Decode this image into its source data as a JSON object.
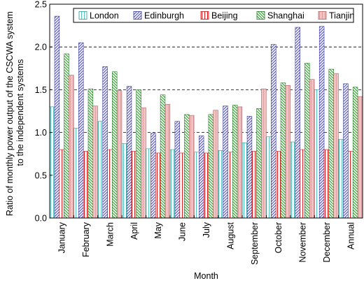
{
  "chart_data": {
    "type": "bar",
    "xlabel": "Month",
    "ylabel": "Ratio of monthly power output of the CSCWA system to the independent systems",
    "ylabel_lines": [
      "Ratio of monthly power output of the CSCWA system",
      "to the independent systems"
    ],
    "ylim": [
      0,
      2.5
    ],
    "yticks": [
      "0.0",
      "0.5",
      "1.0",
      "1.5",
      "2.0",
      "2.5"
    ],
    "grid": "horizontal dashed at 0.5 intervals",
    "legend_position": "top",
    "categories": [
      "January",
      "February",
      "March",
      "April",
      "May",
      "June",
      "July",
      "August",
      "September",
      "October",
      "November",
      "December",
      "Annual"
    ],
    "series": [
      {
        "name": "London",
        "color": "#7fd1cf",
        "values": [
          1.3,
          1.05,
          1.13,
          0.87,
          0.81,
          0.8,
          0.77,
          0.79,
          0.88,
          0.95,
          0.89,
          1.5,
          0.92
        ]
      },
      {
        "name": "Edinburgh",
        "color": "#8f8fe0",
        "values": [
          2.36,
          2.05,
          1.77,
          1.54,
          0.99,
          1.13,
          0.96,
          1.31,
          1.19,
          2.03,
          2.23,
          2.24,
          1.57
        ]
      },
      {
        "name": "Beijing",
        "color": "#e03030",
        "values": [
          0.8,
          0.78,
          0.8,
          0.78,
          0.76,
          0.76,
          0.76,
          0.77,
          0.78,
          0.78,
          0.8,
          0.8,
          0.78
        ]
      },
      {
        "name": "Shanghai",
        "color": "#8ccf8c",
        "values": [
          1.92,
          1.51,
          1.71,
          1.5,
          1.44,
          1.21,
          1.21,
          1.32,
          1.28,
          1.58,
          1.81,
          1.74,
          1.53
        ]
      },
      {
        "name": "Tianjin",
        "color": "#e0a0a0",
        "values": [
          1.67,
          1.31,
          1.49,
          1.29,
          1.33,
          1.2,
          1.26,
          1.3,
          1.51,
          1.55,
          1.62,
          1.69,
          1.42
        ]
      }
    ]
  }
}
